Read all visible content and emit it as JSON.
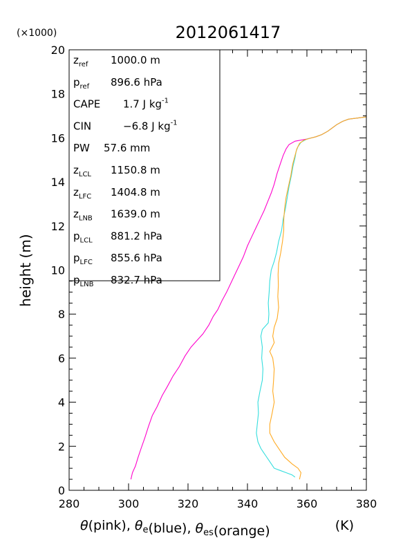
{
  "chart_data": {
    "type": "line",
    "title": "2012061417",
    "y_multiplier": "(×1000)",
    "ylabel": "height (m)",
    "xlabel_parts": [
      {
        "t": "θ",
        "it": true
      },
      {
        "t": "(pink), "
      },
      {
        "t": "θ",
        "it": true
      },
      {
        "t": "e",
        "sub": true
      },
      {
        "t": "(blue), "
      },
      {
        "t": "θ",
        "it": true
      },
      {
        "t": "es",
        "sub": true
      },
      {
        "t": "(orange)"
      }
    ],
    "xlabel_unit": "(K)",
    "xlim": [
      280,
      380
    ],
    "ylim": [
      0,
      20
    ],
    "x_ticks": [
      280,
      300,
      320,
      340,
      360,
      380
    ],
    "y_ticks": [
      0,
      2,
      4,
      6,
      8,
      10,
      12,
      14,
      16,
      18,
      20
    ],
    "grid": false,
    "info_box": [
      {
        "sym": "z",
        "sub": "ref",
        "value": "1000.0 m"
      },
      {
        "sym": "p",
        "sub": "ref",
        "value": "896.6 hPa"
      },
      {
        "sym": "CAPE",
        "sub": "",
        "value": "1.7 J kg",
        "sup": "-1"
      },
      {
        "sym": "CIN",
        "sub": "",
        "value": "−6.8 J kg",
        "sup": "-1"
      },
      {
        "sym": "PW",
        "sub": "",
        "value": "57.6 mm"
      },
      {
        "sym": "z",
        "sub": "LCL",
        "value": "1150.8 m"
      },
      {
        "sym": "z",
        "sub": "LFC",
        "value": "1404.8 m"
      },
      {
        "sym": "z",
        "sub": "LNB",
        "value": "1639.0 m"
      },
      {
        "sym": "p",
        "sub": "LCL",
        "value": "881.2 hPa"
      },
      {
        "sym": "p",
        "sub": "LFC",
        "value": "855.6 hPa"
      },
      {
        "sym": "p",
        "sub": "LNB",
        "value": "832.7 hPa"
      }
    ],
    "series": [
      {
        "color": "#ff00cc",
        "points": [
          [
            300.8,
            0.5
          ],
          [
            301.3,
            0.8
          ],
          [
            302.3,
            1.1
          ],
          [
            303.2,
            1.5
          ],
          [
            304.2,
            1.9
          ],
          [
            305.5,
            2.4
          ],
          [
            306.7,
            2.9
          ],
          [
            308.0,
            3.4
          ],
          [
            309.6,
            3.8
          ],
          [
            311.3,
            4.3
          ],
          [
            313.0,
            4.7
          ],
          [
            315.0,
            5.2
          ],
          [
            317.0,
            5.6
          ],
          [
            319.0,
            6.1
          ],
          [
            321.0,
            6.5
          ],
          [
            323.0,
            6.8
          ],
          [
            325.0,
            7.1
          ],
          [
            327.0,
            7.5
          ],
          [
            328.5,
            7.9
          ],
          [
            330.0,
            8.2
          ],
          [
            331.4,
            8.6
          ],
          [
            333.0,
            9.0
          ],
          [
            334.4,
            9.4
          ],
          [
            335.8,
            9.8
          ],
          [
            337.2,
            10.2
          ],
          [
            338.6,
            10.6
          ],
          [
            340.0,
            11.1
          ],
          [
            341.4,
            11.5
          ],
          [
            342.8,
            11.9
          ],
          [
            344.2,
            12.3
          ],
          [
            345.6,
            12.7
          ],
          [
            346.8,
            13.1
          ],
          [
            348.0,
            13.5
          ],
          [
            349.0,
            13.9
          ],
          [
            350.0,
            14.4
          ],
          [
            351.0,
            14.8
          ],
          [
            352.0,
            15.2
          ],
          [
            353.0,
            15.5
          ],
          [
            354.0,
            15.7
          ],
          [
            356.0,
            15.85
          ],
          [
            360.0,
            15.95
          ],
          [
            363.0,
            16.05
          ],
          [
            365.0,
            16.15
          ],
          [
            367.0,
            16.3
          ],
          [
            368.5,
            16.45
          ],
          [
            370.0,
            16.6
          ],
          [
            372.0,
            16.75
          ],
          [
            374.0,
            16.85
          ],
          [
            377.0,
            16.9
          ],
          [
            380.0,
            16.95
          ]
        ]
      },
      {
        "color": "#33dddd",
        "points": [
          [
            356.0,
            0.6
          ],
          [
            355.0,
            0.7
          ],
          [
            353.0,
            0.8
          ],
          [
            351.0,
            0.9
          ],
          [
            349.0,
            1.0
          ],
          [
            347.5,
            1.3
          ],
          [
            346.0,
            1.6
          ],
          [
            344.5,
            1.9
          ],
          [
            343.5,
            2.2
          ],
          [
            343.0,
            2.6
          ],
          [
            343.3,
            3.0
          ],
          [
            343.7,
            3.5
          ],
          [
            343.5,
            4.0
          ],
          [
            344.2,
            4.5
          ],
          [
            345.0,
            5.0
          ],
          [
            345.2,
            5.5
          ],
          [
            344.8,
            6.0
          ],
          [
            345.0,
            6.5
          ],
          [
            344.5,
            7.0
          ],
          [
            345.0,
            7.3
          ],
          [
            347.0,
            7.6
          ],
          [
            347.2,
            8.0
          ],
          [
            347.0,
            8.5
          ],
          [
            347.3,
            9.0
          ],
          [
            347.5,
            9.5
          ],
          [
            348.0,
            10.0
          ],
          [
            349.0,
            10.4
          ],
          [
            349.8,
            10.8
          ],
          [
            350.5,
            11.3
          ],
          [
            351.5,
            11.8
          ],
          [
            352.0,
            12.3
          ],
          [
            352.8,
            12.8
          ],
          [
            353.4,
            13.3
          ],
          [
            354.0,
            13.8
          ],
          [
            354.8,
            14.3
          ],
          [
            355.3,
            14.7
          ],
          [
            356.0,
            15.1
          ],
          [
            356.4,
            15.4
          ],
          [
            357.0,
            15.6
          ],
          [
            358.0,
            15.8
          ],
          [
            360.0,
            15.95
          ],
          [
            363.0,
            16.05
          ],
          [
            365.0,
            16.15
          ],
          [
            367.0,
            16.3
          ],
          [
            368.5,
            16.45
          ],
          [
            370.0,
            16.6
          ],
          [
            372.0,
            16.75
          ],
          [
            374.0,
            16.85
          ],
          [
            377.0,
            16.9
          ],
          [
            380.0,
            16.95
          ]
        ]
      },
      {
        "color": "#ffaa22",
        "points": [
          [
            357.5,
            0.5
          ],
          [
            358.0,
            0.8
          ],
          [
            357.0,
            1.0
          ],
          [
            355.0,
            1.2
          ],
          [
            352.5,
            1.5
          ],
          [
            351.0,
            1.8
          ],
          [
            349.0,
            2.2
          ],
          [
            347.5,
            2.6
          ],
          [
            347.5,
            3.0
          ],
          [
            348.3,
            3.5
          ],
          [
            349.0,
            4.0
          ],
          [
            348.5,
            4.5
          ],
          [
            348.8,
            5.0
          ],
          [
            349.0,
            5.5
          ],
          [
            348.5,
            6.0
          ],
          [
            347.5,
            6.3
          ],
          [
            349.0,
            6.7
          ],
          [
            348.5,
            7.0
          ],
          [
            349.0,
            7.4
          ],
          [
            350.0,
            7.8
          ],
          [
            350.5,
            8.3
          ],
          [
            350.2,
            8.8
          ],
          [
            350.4,
            9.3
          ],
          [
            350.3,
            9.8
          ],
          [
            350.5,
            10.3
          ],
          [
            351.2,
            10.8
          ],
          [
            351.8,
            11.3
          ],
          [
            352.2,
            11.8
          ],
          [
            352.2,
            12.3
          ],
          [
            352.5,
            12.8
          ],
          [
            353.0,
            13.3
          ],
          [
            353.8,
            13.8
          ],
          [
            354.6,
            14.3
          ],
          [
            355.2,
            14.8
          ],
          [
            356.0,
            15.2
          ],
          [
            356.6,
            15.5
          ],
          [
            357.5,
            15.75
          ],
          [
            359.0,
            15.9
          ],
          [
            361.0,
            15.98
          ],
          [
            363.0,
            16.05
          ],
          [
            365.0,
            16.15
          ],
          [
            367.0,
            16.3
          ],
          [
            368.5,
            16.45
          ],
          [
            370.0,
            16.6
          ],
          [
            372.0,
            16.75
          ],
          [
            374.0,
            16.85
          ],
          [
            377.0,
            16.9
          ],
          [
            380.0,
            16.95
          ]
        ]
      }
    ]
  }
}
